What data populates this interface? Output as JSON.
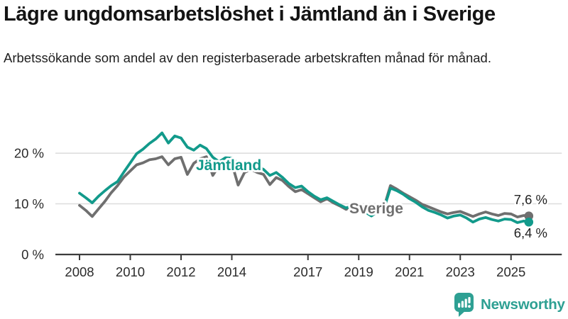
{
  "header": {
    "title": "Lägre ungdomsarbetslöshet i Jämtland än i Sverige",
    "subtitle": "Arbetssökande som andel av den registerbaserade arbetskraften månad för månad."
  },
  "colors": {
    "jamtland_teal": "#129a8b",
    "sverige_gray": "#6f6f6f",
    "grid": "#dcdcdc",
    "axis": "#3c3c3c",
    "tick_text": "#2b2b2b",
    "value_text": "#222222",
    "logo_teal": "#2ea093"
  },
  "chart_data": {
    "type": "line",
    "unit": "%",
    "grid": "horizontal-only",
    "legend_position": "inline-labels",
    "ylim": [
      0,
      25
    ],
    "xlim": [
      2007.05,
      2027.0
    ],
    "y_tick_values": [
      0,
      10,
      20
    ],
    "y_tick_labels": [
      "0 %",
      "10 %",
      "20 %"
    ],
    "x_tick_values": [
      2008,
      2010,
      2012,
      2014,
      2017,
      2019,
      2021,
      2023,
      2025
    ],
    "x_tick_labels": [
      "2008",
      "2010",
      "2012",
      "2014",
      "2017",
      "2019",
      "2021",
      "2023",
      "2025"
    ],
    "series": [
      {
        "name": "Sverige",
        "color": "#6f6f6f",
        "end_label": "7,6 %",
        "end_value": 7.6,
        "points": [
          [
            2008,
            9.7
          ],
          [
            2008.25,
            8.7
          ],
          [
            2008.5,
            7.5
          ],
          [
            2008.75,
            9
          ],
          [
            2009,
            10.5
          ],
          [
            2009.25,
            12.2
          ],
          [
            2009.5,
            13.6
          ],
          [
            2009.75,
            15.3
          ],
          [
            2010,
            16.5
          ],
          [
            2010.25,
            17.7
          ],
          [
            2010.5,
            18.1
          ],
          [
            2010.75,
            18.7
          ],
          [
            2011,
            18.9
          ],
          [
            2011.25,
            19.3
          ],
          [
            2011.5,
            17.7
          ],
          [
            2011.75,
            18.9
          ],
          [
            2012,
            19.2
          ],
          [
            2012.25,
            15.8
          ],
          [
            2012.5,
            18
          ],
          [
            2012.75,
            18.9
          ],
          [
            2013,
            19.3
          ],
          [
            2013.25,
            15.6
          ],
          [
            2013.5,
            17.6
          ],
          [
            2013.75,
            18.2
          ],
          [
            2014,
            18
          ],
          [
            2014.25,
            13.7
          ],
          [
            2014.5,
            16.2
          ],
          [
            2014.75,
            16.8
          ],
          [
            2015,
            16.2
          ],
          [
            2015.25,
            15.8
          ],
          [
            2015.5,
            13.8
          ],
          [
            2015.75,
            15.2
          ],
          [
            2016,
            14.6
          ],
          [
            2016.25,
            13.4
          ],
          [
            2016.5,
            12.4
          ],
          [
            2016.75,
            12.8
          ],
          [
            2017,
            12
          ],
          [
            2017.25,
            11.2
          ],
          [
            2017.5,
            10.4
          ],
          [
            2017.75,
            11
          ],
          [
            2018,
            10.2
          ],
          [
            2018.25,
            9.6
          ],
          [
            2018.5,
            8.9
          ],
          [
            2018.75,
            9.4
          ],
          [
            2019,
            9
          ],
          [
            2019.25,
            8.6
          ],
          [
            2019.5,
            8.2
          ],
          [
            2019.75,
            8.8
          ],
          [
            2020,
            9.4
          ],
          [
            2020.25,
            13.6
          ],
          [
            2020.5,
            12.9
          ],
          [
            2020.75,
            12.1
          ],
          [
            2021,
            11.4
          ],
          [
            2021.25,
            10.7
          ],
          [
            2021.5,
            9.9
          ],
          [
            2021.75,
            9.4
          ],
          [
            2022,
            8.9
          ],
          [
            2022.25,
            8.4
          ],
          [
            2022.5,
            8
          ],
          [
            2022.75,
            8.3
          ],
          [
            2023,
            8.5
          ],
          [
            2023.25,
            8
          ],
          [
            2023.5,
            7.5
          ],
          [
            2023.75,
            8
          ],
          [
            2024,
            8.4
          ],
          [
            2024.25,
            8
          ],
          [
            2024.5,
            7.7
          ],
          [
            2024.75,
            8.1
          ],
          [
            2025,
            8
          ],
          [
            2025.25,
            7.4
          ],
          [
            2025.5,
            7.7
          ],
          [
            2025.7,
            7.6
          ]
        ]
      },
      {
        "name": "Jämtland",
        "color": "#129a8b",
        "end_label": "6,4 %",
        "end_value": 6.4,
        "points": [
          [
            2008,
            12.1
          ],
          [
            2008.25,
            11.2
          ],
          [
            2008.5,
            10.2
          ],
          [
            2008.75,
            11.5
          ],
          [
            2009,
            12.6
          ],
          [
            2009.25,
            13.6
          ],
          [
            2009.5,
            14.4
          ],
          [
            2009.75,
            16.3
          ],
          [
            2010,
            18.1
          ],
          [
            2010.25,
            19.9
          ],
          [
            2010.5,
            20.8
          ],
          [
            2010.75,
            21.9
          ],
          [
            2011,
            22.8
          ],
          [
            2011.25,
            24
          ],
          [
            2011.5,
            22
          ],
          [
            2011.75,
            23.4
          ],
          [
            2012,
            23
          ],
          [
            2012.25,
            21.2
          ],
          [
            2012.5,
            20.6
          ],
          [
            2012.75,
            21.6
          ],
          [
            2013,
            20.9
          ],
          [
            2013.25,
            19.2
          ],
          [
            2013.5,
            18.3
          ],
          [
            2013.75,
            19.1
          ],
          [
            2014,
            19
          ],
          [
            2014.25,
            18
          ],
          [
            2014.5,
            17.2
          ],
          [
            2014.75,
            18
          ],
          [
            2015,
            17.4
          ],
          [
            2015.25,
            16.8
          ],
          [
            2015.5,
            15.6
          ],
          [
            2015.75,
            16.2
          ],
          [
            2016,
            15.2
          ],
          [
            2016.25,
            14
          ],
          [
            2016.5,
            13.2
          ],
          [
            2016.75,
            13.5
          ],
          [
            2017,
            12.4
          ],
          [
            2017.25,
            11.5
          ],
          [
            2017.5,
            10.8
          ],
          [
            2017.75,
            11.2
          ],
          [
            2018,
            10.5
          ],
          [
            2018.25,
            9.8
          ],
          [
            2018.5,
            9.2
          ],
          [
            2018.75,
            9.6
          ],
          [
            2019,
            9.1
          ],
          [
            2019.25,
            8.4
          ],
          [
            2019.5,
            7.6
          ],
          [
            2019.75,
            8.5
          ],
          [
            2020,
            9.2
          ],
          [
            2020.25,
            13.1
          ],
          [
            2020.5,
            12.6
          ],
          [
            2020.75,
            11.9
          ],
          [
            2021,
            11
          ],
          [
            2021.25,
            10.3
          ],
          [
            2021.5,
            9.4
          ],
          [
            2021.75,
            8.7
          ],
          [
            2022,
            8.3
          ],
          [
            2022.25,
            7.8
          ],
          [
            2022.5,
            7.2
          ],
          [
            2022.75,
            7.6
          ],
          [
            2023,
            7.8
          ],
          [
            2023.25,
            7.2
          ],
          [
            2023.5,
            6.4
          ],
          [
            2023.75,
            7
          ],
          [
            2024,
            7.3
          ],
          [
            2024.25,
            6.9
          ],
          [
            2024.5,
            6.6
          ],
          [
            2024.75,
            7
          ],
          [
            2025,
            6.9
          ],
          [
            2025.25,
            6.3
          ],
          [
            2025.5,
            6.6
          ],
          [
            2025.7,
            6.4
          ]
        ]
      }
    ]
  },
  "footer": {
    "brand": "Newsworthy"
  }
}
